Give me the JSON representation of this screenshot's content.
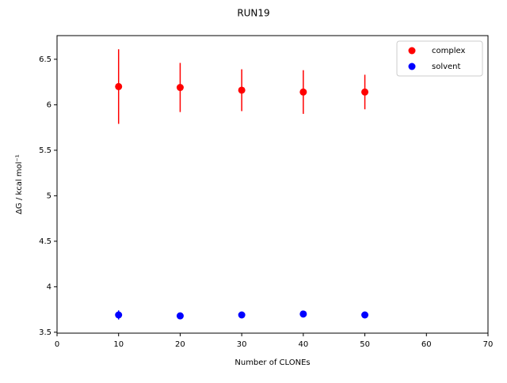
{
  "chart_data": {
    "type": "scatter",
    "title": "RUN19",
    "x_label": "Number of CLONEs",
    "y_label": "ΔG / kcal mol⁻¹",
    "x": [
      10,
      20,
      30,
      40,
      50
    ],
    "series": [
      {
        "name": "complex",
        "color": "#ff0000",
        "values": [
          6.2,
          6.19,
          6.16,
          6.14,
          6.14
        ],
        "errors": [
          0.41,
          0.27,
          0.23,
          0.24,
          0.19
        ]
      },
      {
        "name": "solvent",
        "color": "#0000ff",
        "values": [
          3.69,
          3.68,
          3.69,
          3.7,
          3.69
        ],
        "errors": [
          0.05,
          0.02,
          0.01,
          0.01,
          0.01
        ]
      }
    ],
    "xlim": [
      0,
      70
    ],
    "xticks": [
      0,
      10,
      20,
      30,
      40,
      50,
      60,
      70
    ],
    "ylim": [
      3.49,
      6.76
    ],
    "yticks": [
      3.5,
      4.0,
      4.5,
      5.0,
      5.5,
      6.0,
      6.5
    ],
    "legend": "upper right"
  }
}
